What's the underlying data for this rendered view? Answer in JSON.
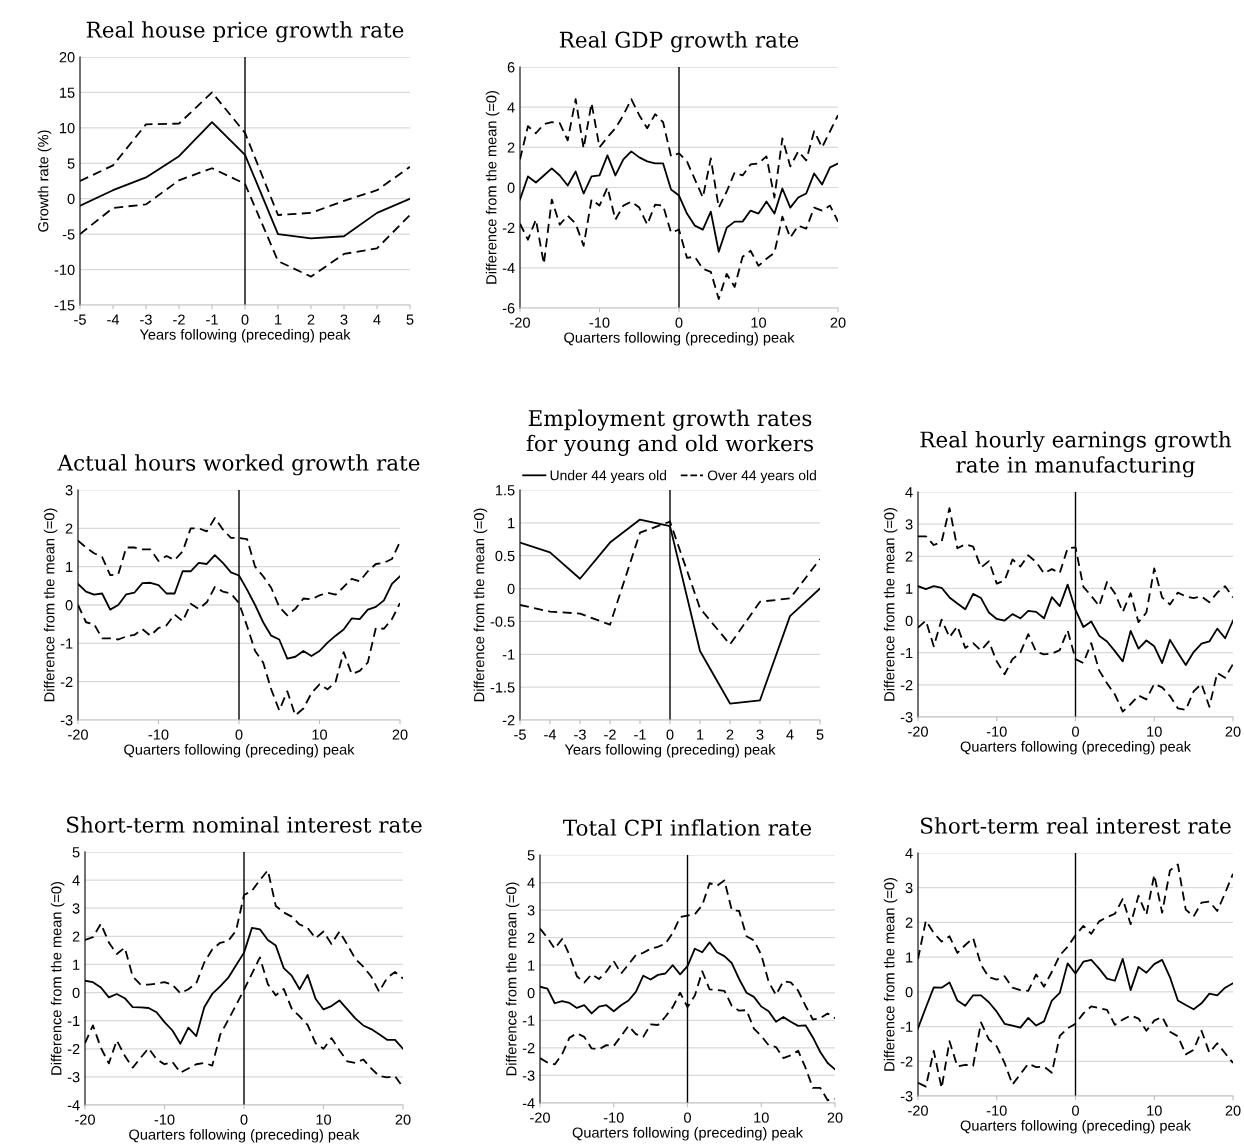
{
  "chart_data": [
    {
      "type": "line",
      "title": "Real house price growth rate",
      "xlabel": "Years following (preceding) peak",
      "ylabel": "Growth rate (%)",
      "x": [
        -5,
        -4,
        -3,
        -2,
        -1,
        0,
        1,
        2,
        3,
        4,
        5
      ],
      "xlim": [
        -5,
        5
      ],
      "xticks": [
        -5,
        -4,
        -3,
        -2,
        -1,
        0,
        1,
        2,
        3,
        4,
        5
      ],
      "ylim": [
        -15,
        20
      ],
      "yticks": [
        -15,
        -10,
        -5,
        0,
        5,
        10,
        15,
        20
      ],
      "grid": "y",
      "ref_lines": [
        {
          "axis": "x",
          "value": 0,
          "color": "#000000"
        }
      ],
      "series": [
        {
          "color": "#000000",
          "line_style": "solid",
          "values": [
            -1,
            1.2,
            3,
            6,
            10.8,
            6.2,
            -5,
            -5.6,
            -5.3,
            -2,
            0
          ]
        },
        {
          "color": "#000000",
          "line_style": "dashed",
          "values": [
            2.5,
            4.7,
            10.5,
            10.6,
            15,
            9.3,
            -2.3,
            -2.0,
            -0.3,
            1.2,
            4.5
          ]
        },
        {
          "color": "#000000",
          "line_style": "dashed",
          "values": [
            -5,
            -1.3,
            -0.8,
            2.6,
            4.3,
            2.1,
            -8.8,
            -11,
            -7.8,
            -7.0,
            -2.3
          ]
        }
      ]
    },
    {
      "type": "line",
      "title": "Real GDP growth rate",
      "xlabel": "Quarters following (preceding) peak",
      "ylabel": "Difference from the mean (=0)",
      "x": [
        -20,
        -19,
        -18,
        -17,
        -16,
        -15,
        -14,
        -13,
        -12,
        -11,
        -10,
        -9,
        -8,
        -7,
        -6,
        -5,
        -4,
        -3,
        -2,
        -1,
        0,
        1,
        2,
        3,
        4,
        5,
        6,
        7,
        8,
        9,
        10,
        11,
        12,
        13,
        14,
        15,
        16,
        17,
        18,
        19,
        20
      ],
      "xlim": [
        -20,
        20
      ],
      "xticks": [
        -20,
        -10,
        0,
        10,
        20
      ],
      "ylim": [
        -6,
        6
      ],
      "yticks": [
        -6,
        -4,
        -2,
        0,
        2,
        4,
        6
      ],
      "grid": "y",
      "ref_lines": [
        {
          "axis": "x",
          "value": 0,
          "color": "#000000"
        }
      ],
      "series": [
        {
          "color": "#000000",
          "line_style": "solid",
          "values": [
            -0.6,
            0.55,
            0.25,
            0.6,
            0.95,
            0.6,
            0.1,
            0.8,
            -0.3,
            0.55,
            0.6,
            1.6,
            0.6,
            1.4,
            1.8,
            1.5,
            1.3,
            1.2,
            1.2,
            -0.1,
            -0.4,
            -1.3,
            -1.9,
            -2.1,
            -1.2,
            -3.2,
            -2.0,
            -1.7,
            -1.7,
            -1.15,
            -1.3,
            -0.7,
            -1.3,
            -0.05,
            -1.0,
            -0.5,
            -0.3,
            0.7,
            0.15,
            1.0,
            1.2
          ]
        },
        {
          "color": "#000000",
          "line_style": "dashed",
          "values": [
            1.4,
            3.05,
            2.7,
            3.15,
            3.25,
            3.2,
            2.35,
            4.4,
            1.95,
            4.2,
            2.0,
            2.5,
            2.95,
            3.6,
            4.4,
            3.6,
            2.95,
            3.65,
            3.25,
            1.55,
            1.7,
            1.3,
            0.4,
            -0.5,
            1.45,
            -1.0,
            -0.2,
            0.75,
            0.6,
            1.15,
            1.2,
            1.55,
            -0.5,
            2.45,
            1.05,
            1.8,
            1.35,
            2.8,
            2.0,
            2.8,
            3.6
          ]
        },
        {
          "color": "#000000",
          "line_style": "dashed",
          "values": [
            -1.8,
            -2.6,
            -1.6,
            -3.8,
            -0.6,
            -1.85,
            -1.4,
            -1.8,
            -2.9,
            -0.6,
            -0.9,
            0.0,
            -1.6,
            -0.9,
            -0.7,
            -1.0,
            -1.85,
            -0.85,
            -0.9,
            -2.25,
            -2.1,
            -3.5,
            -3.45,
            -4.05,
            -4.2,
            -5.55,
            -4.3,
            -4.95,
            -3.45,
            -3.15,
            -3.9,
            -3.55,
            -3.25,
            -1.45,
            -2.5,
            -1.9,
            -2.05,
            -1.0,
            -1.15,
            -0.9,
            -1.7
          ]
        }
      ]
    },
    {
      "type": "line",
      "title": "Actual hours worked growth rate",
      "xlabel": "Quarters following (preceding) peak",
      "ylabel": "Difference from the mean (=0)",
      "x": [
        -20,
        -19,
        -18,
        -17,
        -16,
        -15,
        -14,
        -13,
        -12,
        -11,
        -10,
        -9,
        -8,
        -7,
        -6,
        -5,
        -4,
        -3,
        -2,
        -1,
        0,
        1,
        2,
        3,
        4,
        5,
        6,
        7,
        8,
        9,
        10,
        11,
        12,
        13,
        14,
        15,
        16,
        17,
        18,
        19,
        20
      ],
      "xlim": [
        -20,
        20
      ],
      "xticks": [
        -20,
        -10,
        0,
        10,
        20
      ],
      "ylim": [
        -3,
        3
      ],
      "yticks": [
        -3,
        -2,
        -1,
        0,
        1,
        2,
        3
      ],
      "grid": "y",
      "ref_lines": [
        {
          "axis": "x",
          "value": 0,
          "color": "#000000"
        }
      ],
      "series": [
        {
          "color": "#000000",
          "line_style": "solid",
          "values": [
            0.55,
            0.35,
            0.27,
            0.3,
            -0.12,
            0.0,
            0.28,
            0.32,
            0.57,
            0.58,
            0.52,
            0.3,
            0.3,
            0.88,
            0.88,
            1.1,
            1.07,
            1.3,
            1.1,
            0.85,
            0.77,
            0.4,
            0.0,
            -0.45,
            -0.8,
            -0.9,
            -1.4,
            -1.35,
            -1.2,
            -1.33,
            -1.2,
            -0.98,
            -0.8,
            -0.64,
            -0.35,
            -0.37,
            -0.12,
            -0.05,
            0.12,
            0.55,
            0.75
          ]
        },
        {
          "color": "#000000",
          "line_style": "dashed",
          "values": [
            1.68,
            1.5,
            1.35,
            1.25,
            0.78,
            0.8,
            1.5,
            1.5,
            1.45,
            1.45,
            1.15,
            1.28,
            1.17,
            1.4,
            2.0,
            2.0,
            1.92,
            2.27,
            1.97,
            1.75,
            1.75,
            1.72,
            1.0,
            0.75,
            0.45,
            -0.05,
            -0.27,
            -0.1,
            0.17,
            0.15,
            0.25,
            0.32,
            0.27,
            0.47,
            0.68,
            0.62,
            0.88,
            1.07,
            1.1,
            1.2,
            1.65
          ]
        },
        {
          "color": "#000000",
          "line_style": "dashed",
          "values": [
            0.0,
            -0.45,
            -0.5,
            -0.87,
            -0.87,
            -0.9,
            -0.82,
            -0.78,
            -0.63,
            -0.8,
            -0.6,
            -0.53,
            -0.25,
            -0.42,
            0.03,
            -0.1,
            0.07,
            0.47,
            0.35,
            0.3,
            0.05,
            -0.55,
            -1.2,
            -1.5,
            -2.2,
            -2.75,
            -2.25,
            -2.88,
            -2.7,
            -2.3,
            -2.07,
            -2.2,
            -2.0,
            -1.23,
            -1.8,
            -1.72,
            -1.5,
            -0.6,
            -0.62,
            -0.37,
            0.05
          ]
        }
      ]
    },
    {
      "type": "line",
      "title": "Employment growth rates\nfor young and old workers",
      "xlabel": "Years following (preceding) peak",
      "ylabel": "Difference from the mean (=0)",
      "x": [
        -5,
        -4,
        -3,
        -2,
        -1,
        0,
        1,
        2,
        3,
        4,
        5
      ],
      "xlim": [
        -5,
        5
      ],
      "xticks": [
        -5,
        -4,
        -3,
        -2,
        -1,
        0,
        1,
        2,
        3,
        4,
        5
      ],
      "ylim": [
        -2,
        1.5
      ],
      "yticks": [
        -2,
        -1.5,
        -1,
        -0.5,
        0,
        0.5,
        1,
        1.5
      ],
      "grid": "y",
      "legend": "top",
      "ref_lines": [
        {
          "axis": "x",
          "value": 0,
          "color": "#000000"
        }
      ],
      "series": [
        {
          "name": "Under 44 years old",
          "color": "#000000",
          "line_style": "solid",
          "values": [
            0.7,
            0.55,
            0.15,
            0.7,
            1.05,
            0.95,
            -0.95,
            -1.75,
            -1.7,
            -0.42,
            0.0
          ]
        },
        {
          "name": "Over 44 years old",
          "color": "#000000",
          "line_style": "dashed",
          "values": [
            -0.25,
            -0.35,
            -0.38,
            -0.55,
            0.85,
            1.02,
            -0.3,
            -0.85,
            -0.2,
            -0.15,
            0.45
          ]
        }
      ]
    },
    {
      "type": "line",
      "title": "Real hourly earnings growth\nrate in manufacturing",
      "xlabel": "Quarters following (preceding) peak",
      "ylabel": "Difference from the mean (=0)",
      "x": [
        -20,
        -19,
        -18,
        -17,
        -16,
        -15,
        -14,
        -13,
        -12,
        -11,
        -10,
        -9,
        -8,
        -7,
        -6,
        -5,
        -4,
        -3,
        -2,
        -1,
        0,
        1,
        2,
        3,
        4,
        5,
        6,
        7,
        8,
        9,
        10,
        11,
        12,
        13,
        14,
        15,
        16,
        17,
        18,
        19,
        20
      ],
      "xlim": [
        -20,
        20
      ],
      "xticks": [
        -20,
        -10,
        0,
        10,
        20
      ],
      "ylim": [
        -3,
        4
      ],
      "yticks": [
        -3,
        -2,
        -1,
        0,
        1,
        2,
        3,
        4
      ],
      "grid": "y",
      "ref_lines": [
        {
          "axis": "x",
          "value": 0,
          "color": "#000000"
        }
      ],
      "series": [
        {
          "color": "#000000",
          "line_style": "solid",
          "values": [
            1.07,
            0.98,
            1.07,
            1.02,
            0.72,
            0.53,
            0.35,
            0.83,
            0.7,
            0.25,
            0.05,
            0.0,
            0.2,
            0.07,
            0.3,
            0.27,
            0.07,
            0.73,
            0.45,
            1.12,
            0.33,
            -0.2,
            -0.03,
            -0.47,
            -0.65,
            -0.95,
            -1.27,
            -0.32,
            -0.87,
            -0.62,
            -0.8,
            -1.32,
            -0.6,
            -1.0,
            -1.38,
            -0.98,
            -0.72,
            -0.65,
            -0.25,
            -0.55,
            0.0
          ]
        },
        {
          "color": "#000000",
          "line_style": "dashed",
          "values": [
            2.62,
            2.62,
            2.35,
            2.45,
            3.5,
            2.25,
            2.37,
            2.3,
            1.65,
            1.85,
            1.15,
            1.25,
            1.9,
            1.68,
            2.03,
            1.82,
            1.47,
            1.6,
            1.48,
            2.25,
            2.28,
            1.05,
            0.77,
            0.45,
            1.2,
            0.85,
            0.27,
            0.85,
            -0.05,
            0.25,
            1.62,
            0.72,
            0.5,
            0.87,
            0.75,
            0.7,
            0.75,
            0.57,
            0.87,
            1.07,
            0.72
          ]
        },
        {
          "color": "#000000",
          "line_style": "dashed",
          "values": [
            -0.22,
            0.0,
            -0.8,
            0.03,
            -0.52,
            -0.18,
            -0.85,
            -0.7,
            -0.93,
            -0.65,
            -1.27,
            -1.67,
            -1.2,
            -1.0,
            -0.42,
            -0.97,
            -1.05,
            -1.03,
            -0.92,
            -0.3,
            -1.2,
            -1.32,
            -0.7,
            -1.55,
            -1.95,
            -2.3,
            -2.83,
            -2.6,
            -2.33,
            -2.45,
            -1.97,
            -2.08,
            -2.35,
            -2.73,
            -2.78,
            -2.2,
            -1.97,
            -2.68,
            -1.63,
            -1.78,
            -1.35
          ]
        }
      ]
    },
    {
      "type": "line",
      "title": "Short-term nominal interest rate",
      "xlabel": "Quarters following (preceding) peak",
      "ylabel": "Difference from the mean (=0)",
      "x": [
        -20,
        -19,
        -18,
        -17,
        -16,
        -15,
        -14,
        -13,
        -12,
        -11,
        -10,
        -9,
        -8,
        -7,
        -6,
        -5,
        -4,
        -3,
        -2,
        -1,
        0,
        1,
        2,
        3,
        4,
        5,
        6,
        7,
        8,
        9,
        10,
        11,
        12,
        13,
        14,
        15,
        16,
        17,
        18,
        19,
        20
      ],
      "xlim": [
        -20,
        20
      ],
      "xticks": [
        -20,
        -10,
        0,
        10,
        20
      ],
      "ylim": [
        -4,
        5
      ],
      "yticks": [
        -4,
        -3,
        -2,
        -1,
        0,
        1,
        2,
        3,
        4,
        5
      ],
      "grid": "y",
      "ref_lines": [
        {
          "axis": "x",
          "value": 0,
          "color": "#000000"
        }
      ],
      "series": [
        {
          "color": "#000000",
          "line_style": "solid",
          "values": [
            0.42,
            0.37,
            0.18,
            -0.17,
            -0.05,
            -0.2,
            -0.52,
            -0.53,
            -0.55,
            -0.7,
            -1.05,
            -1.35,
            -1.82,
            -1.25,
            -1.55,
            -0.52,
            -0.05,
            0.22,
            0.52,
            0.97,
            1.42,
            2.3,
            2.25,
            1.87,
            1.67,
            0.87,
            0.6,
            0.12,
            0.63,
            -0.22,
            -0.6,
            -0.48,
            -0.28,
            -0.6,
            -0.92,
            -1.17,
            -1.3,
            -1.48,
            -1.68,
            -1.68,
            -2.0
          ]
        },
        {
          "color": "#000000",
          "line_style": "dashed",
          "values": [
            1.87,
            1.97,
            2.45,
            1.78,
            1.37,
            1.6,
            0.57,
            0.28,
            0.28,
            0.32,
            0.37,
            0.28,
            -0.03,
            0.12,
            0.33,
            1.07,
            1.53,
            1.77,
            1.83,
            2.2,
            3.47,
            3.62,
            4.0,
            4.35,
            3.08,
            2.85,
            2.7,
            2.42,
            2.3,
            1.93,
            2.17,
            1.73,
            2.17,
            1.7,
            1.2,
            0.92,
            0.57,
            0.03,
            0.52,
            0.73,
            0.5
          ]
        },
        {
          "color": "#000000",
          "line_style": "dashed",
          "values": [
            -1.8,
            -1.17,
            -1.97,
            -2.52,
            -1.7,
            -2.25,
            -2.67,
            -2.32,
            -1.98,
            -2.37,
            -2.55,
            -2.47,
            -2.85,
            -2.7,
            -2.55,
            -2.5,
            -2.6,
            -1.5,
            -0.98,
            -0.45,
            0.1,
            0.67,
            1.25,
            0.3,
            -0.1,
            0.13,
            -0.57,
            -0.85,
            -1.15,
            -1.8,
            -2.0,
            -1.62,
            -2.05,
            -2.45,
            -2.5,
            -2.38,
            -2.7,
            -2.97,
            -3.02,
            -2.97,
            -3.38
          ]
        }
      ]
    },
    {
      "type": "line",
      "title": "Total CPI inflation rate",
      "xlabel": "Quarters following (preceding) peak",
      "ylabel": "Difference from the mean (=0)",
      "x": [
        -20,
        -19,
        -18,
        -17,
        -16,
        -15,
        -14,
        -13,
        -12,
        -11,
        -10,
        -9,
        -8,
        -7,
        -6,
        -5,
        -4,
        -3,
        -2,
        -1,
        0,
        1,
        2,
        3,
        4,
        5,
        6,
        7,
        8,
        9,
        10,
        11,
        12,
        13,
        14,
        15,
        16,
        17,
        18,
        19,
        20
      ],
      "xlim": [
        -20,
        20
      ],
      "xticks": [
        -20,
        -10,
        0,
        10,
        20
      ],
      "ylim": [
        -4,
        5
      ],
      "yticks": [
        -4,
        -3,
        -2,
        -1,
        0,
        1,
        2,
        3,
        4,
        5
      ],
      "grid": "y",
      "ref_lines": [
        {
          "axis": "x",
          "value": 0,
          "color": "#000000"
        }
      ],
      "series": [
        {
          "color": "#000000",
          "line_style": "solid",
          "values": [
            0.22,
            0.15,
            -0.38,
            -0.3,
            -0.37,
            -0.55,
            -0.45,
            -0.75,
            -0.5,
            -0.45,
            -0.67,
            -0.45,
            -0.28,
            0.03,
            0.62,
            0.48,
            0.65,
            0.7,
            1.0,
            0.67,
            0.97,
            1.6,
            1.47,
            1.83,
            1.47,
            1.33,
            1.08,
            0.5,
            0.0,
            -0.15,
            -0.5,
            -0.67,
            -1.05,
            -0.88,
            -1.05,
            -1.2,
            -1.18,
            -1.62,
            -2.15,
            -2.55,
            -2.78
          ]
        },
        {
          "color": "#000000",
          "line_style": "dashed",
          "values": [
            2.33,
            2.0,
            1.6,
            1.95,
            1.37,
            0.6,
            0.37,
            0.67,
            0.5,
            0.77,
            1.15,
            0.7,
            1.03,
            1.37,
            1.45,
            1.6,
            1.67,
            1.78,
            2.17,
            2.75,
            2.8,
            2.85,
            3.18,
            3.98,
            3.88,
            4.08,
            3.0,
            2.97,
            2.05,
            1.9,
            1.38,
            0.4,
            -0.08,
            0.42,
            0.38,
            0.08,
            -0.47,
            -0.97,
            -0.92,
            -0.75,
            -0.92
          ]
        },
        {
          "color": "#000000",
          "line_style": "dashed",
          "values": [
            -2.37,
            -2.53,
            -2.6,
            -2.23,
            -1.63,
            -1.47,
            -1.6,
            -2.02,
            -2.05,
            -1.9,
            -1.93,
            -1.57,
            -1.2,
            -1.5,
            -1.6,
            -1.15,
            -1.17,
            -0.87,
            -0.52,
            0.0,
            -0.52,
            -0.1,
            0.78,
            0.12,
            0.1,
            0.07,
            -0.47,
            -0.65,
            -0.63,
            -1.3,
            -1.57,
            -1.9,
            -1.97,
            -2.37,
            -2.27,
            -2.1,
            -2.72,
            -3.45,
            -3.45,
            -3.9,
            -3.85
          ]
        }
      ]
    },
    {
      "type": "line",
      "title": "Short-term real interest rate",
      "xlabel": "Quarters following (preceding) peak",
      "ylabel": "Difference from the mean (=0)",
      "x": [
        -20,
        -19,
        -18,
        -17,
        -16,
        -15,
        -14,
        -13,
        -12,
        -11,
        -10,
        -9,
        -8,
        -7,
        -6,
        -5,
        -4,
        -3,
        -2,
        -1,
        0,
        1,
        2,
        3,
        4,
        5,
        6,
        7,
        8,
        9,
        10,
        11,
        12,
        13,
        14,
        15,
        16,
        17,
        18,
        19,
        20
      ],
      "xlim": [
        -20,
        20
      ],
      "xticks": [
        -20,
        -10,
        0,
        10,
        20
      ],
      "ylim": [
        -3,
        4
      ],
      "yticks": [
        -3,
        -2,
        -1,
        0,
        1,
        2,
        3,
        4
      ],
      "grid": "y",
      "ref_lines": [
        {
          "axis": "x",
          "value": 0,
          "color": "#000000"
        }
      ],
      "series": [
        {
          "color": "#000000",
          "line_style": "solid",
          "values": [
            -1.05,
            -0.45,
            0.13,
            0.12,
            0.27,
            -0.25,
            -0.4,
            -0.1,
            -0.1,
            -0.3,
            -0.57,
            -0.92,
            -0.97,
            -1.03,
            -0.75,
            -0.97,
            -0.85,
            -0.25,
            -0.03,
            0.82,
            0.53,
            0.87,
            0.92,
            0.67,
            0.38,
            0.32,
            0.95,
            0.05,
            0.72,
            0.55,
            0.8,
            0.92,
            0.42,
            -0.25,
            -0.38,
            -0.5,
            -0.33,
            -0.05,
            -0.1,
            0.12,
            0.25
          ]
        },
        {
          "color": "#000000",
          "line_style": "dashed",
          "values": [
            0.95,
            2.05,
            1.7,
            1.45,
            1.6,
            1.12,
            1.35,
            1.55,
            0.78,
            0.42,
            0.35,
            0.45,
            0.12,
            0.05,
            0.03,
            0.5,
            0.15,
            0.58,
            1.05,
            1.3,
            1.63,
            1.9,
            1.67,
            2.03,
            2.15,
            2.25,
            2.68,
            1.95,
            2.77,
            2.22,
            3.37,
            2.28,
            3.5,
            3.67,
            2.37,
            2.17,
            2.57,
            2.6,
            2.33,
            2.85,
            3.4
          ]
        },
        {
          "color": "#000000",
          "line_style": "dashed",
          "values": [
            -2.62,
            -2.73,
            -1.7,
            -2.77,
            -1.42,
            -2.15,
            -2.1,
            -2.13,
            -0.88,
            -1.37,
            -1.57,
            -2.05,
            -2.67,
            -2.37,
            -2.07,
            -2.17,
            -2.15,
            -2.33,
            -1.27,
            -1.05,
            -0.92,
            -0.62,
            -0.42,
            -0.47,
            -0.52,
            -0.95,
            -0.8,
            -0.68,
            -0.77,
            -1.12,
            -0.83,
            -0.72,
            -1.15,
            -1.28,
            -1.8,
            -1.67,
            -1.12,
            -1.75,
            -1.48,
            -1.77,
            -2.05
          ]
        }
      ]
    }
  ]
}
